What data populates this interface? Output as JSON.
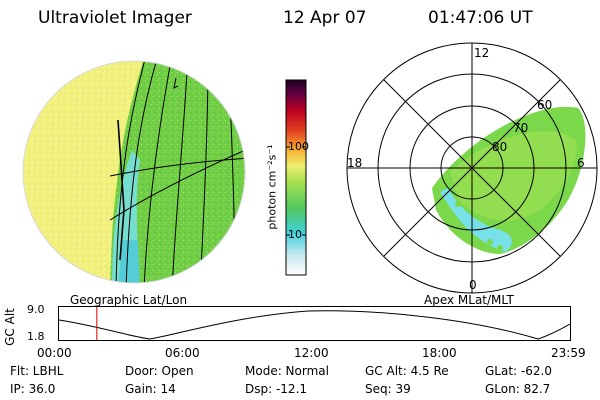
{
  "header": {
    "instrument": "Ultraviolet Imager",
    "date": "12 Apr 07",
    "time": "01:47:06 UT"
  },
  "geo_panel": {
    "caption": "Geographic Lat/Lon"
  },
  "colorbar": {
    "unit_label": "photon cm⁻²s⁻¹",
    "tick_100": "100",
    "tick_10": "10"
  },
  "polar_panel": {
    "caption": "Apex MLat/MLT",
    "mlt_12": "12",
    "mlt_18": "18",
    "mlt_6": "6",
    "mlt_0": "0",
    "lat_60": "60",
    "lat_70": "70",
    "lat_80": "80"
  },
  "altitude_strip": {
    "axis_label": "GC Alt",
    "tick_high": "9.0",
    "tick_low": "1.8",
    "cursor_time_fraction": 0.074,
    "time_ticks": [
      "00:00",
      "06:00",
      "12:00",
      "18:00",
      "23:59"
    ]
  },
  "status": {
    "filter": "Flt: LBHL",
    "door": "Door: Open",
    "mode": "Mode: Normal",
    "gc_alt": "GC Alt: 4.5 Re",
    "glat": "GLat: -62.0",
    "ip": "IP: 36.0",
    "gain": "Gain: 14",
    "dsp": "Dsp:  -12.1",
    "seq": "Seq: 39",
    "glon": "GLon:  82.7"
  },
  "colors": {
    "disk_yellow": "#f0f07a",
    "aurora_green": "#7ad84a",
    "aurora_cyan": "#78e0e8",
    "cursor_red": "#dd0000"
  }
}
